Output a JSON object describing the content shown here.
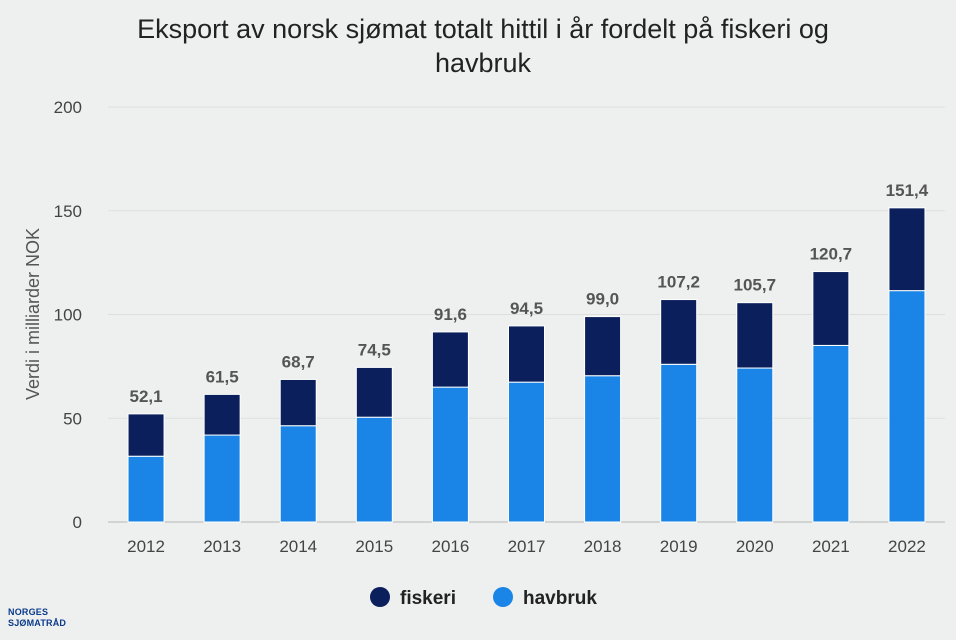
{
  "chart_data": {
    "type": "bar",
    "stacked": true,
    "title_lines": [
      "Eksport av norsk sjømat totalt hittil i år fordelt på fiskeri og",
      "havbruk"
    ],
    "ylabel": "Verdi i milliarder NOK",
    "xlabel": "",
    "ylim": [
      0,
      200
    ],
    "yticks": [
      0,
      50,
      100,
      150,
      200
    ],
    "grid": true,
    "legend_position": "bottom",
    "categories": [
      "2012",
      "2013",
      "2014",
      "2015",
      "2016",
      "2017",
      "2018",
      "2019",
      "2020",
      "2021",
      "2022"
    ],
    "series": [
      {
        "name": "havbruk",
        "color": "#1a85e6",
        "values": [
          31.7,
          41.9,
          46.4,
          50.5,
          65.0,
          67.4,
          70.5,
          76.0,
          74.2,
          85.1,
          111.5
        ]
      },
      {
        "name": "fiskeri",
        "color": "#0b1f5c",
        "values": [
          20.4,
          19.6,
          22.3,
          24.0,
          26.6,
          27.1,
          28.5,
          31.2,
          31.5,
          35.6,
          39.9
        ]
      }
    ],
    "totals": [
      "52,1",
      "61,5",
      "68,7",
      "74,5",
      "91,6",
      "94,5",
      "99,0",
      "107,2",
      "105,7",
      "120,7",
      "151,4"
    ],
    "legend": [
      {
        "name": "fiskeri",
        "color": "#0b1f5c"
      },
      {
        "name": "havbruk",
        "color": "#1a85e6"
      }
    ]
  },
  "logo": {
    "line1": "NORGES",
    "line2": "SJØMATRÅD"
  }
}
